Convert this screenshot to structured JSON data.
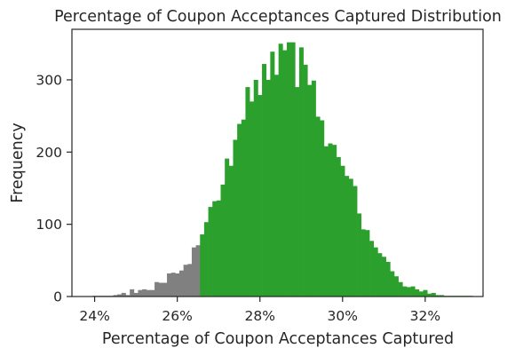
{
  "chart_data": {
    "type": "bar",
    "title": "Percentage of Coupon Acceptances Captured Distribution",
    "xlabel": "Percentage of Coupon Acceptances Captured",
    "ylabel": "Frequency",
    "x_unit": "%",
    "xlim": [
      23.45,
      33.4
    ],
    "ylim": [
      0,
      370
    ],
    "x_ticks": [
      {
        "value": 24,
        "label": "24%"
      },
      {
        "value": 26,
        "label": "26%"
      },
      {
        "value": 28,
        "label": "28%"
      },
      {
        "value": 30,
        "label": "30%"
      },
      {
        "value": 32,
        "label": "32%"
      }
    ],
    "y_ticks": [
      {
        "value": 0,
        "label": "0"
      },
      {
        "value": 100,
        "label": "100"
      },
      {
        "value": 200,
        "label": "200"
      },
      {
        "value": 300,
        "label": "300"
      }
    ],
    "bin_start": 23.95,
    "bin_width": 0.1,
    "threshold": 26.55,
    "colors": {
      "below_threshold": "#808080",
      "above_threshold": "#2ca02c"
    },
    "frequencies": [
      1,
      1,
      1,
      1,
      1,
      2,
      3,
      5,
      2,
      10,
      5,
      9,
      10,
      9,
      9,
      20,
      19,
      19,
      32,
      33,
      32,
      36,
      44,
      45,
      68,
      71,
      86,
      103,
      124,
      132,
      133,
      155,
      191,
      181,
      217,
      239,
      245,
      290,
      270,
      300,
      279,
      322,
      300,
      339,
      307,
      350,
      341,
      352,
      352,
      290,
      345,
      321,
      293,
      299,
      249,
      244,
      208,
      212,
      210,
      193,
      181,
      167,
      163,
      153,
      115,
      93,
      92,
      77,
      68,
      60,
      55,
      48,
      35,
      28,
      20,
      14,
      13,
      14,
      10,
      7,
      9,
      4,
      5,
      2,
      2,
      1,
      1,
      1,
      1,
      1,
      1,
      1
    ]
  }
}
